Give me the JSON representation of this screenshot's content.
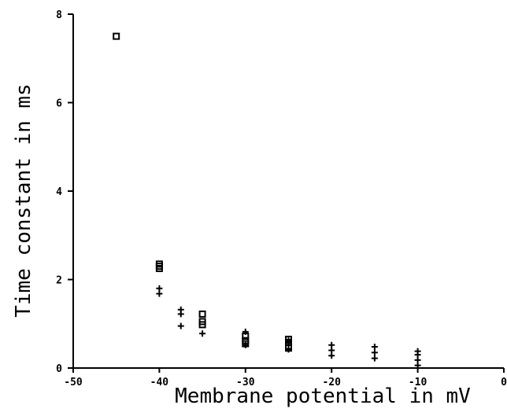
{
  "chart_data": {
    "type": "scatter",
    "title": "",
    "xlabel": "Membrane potential in mV",
    "ylabel": "Time constant in ms",
    "xlim": [
      -50,
      0
    ],
    "ylim": [
      0,
      8
    ],
    "grid": false,
    "x_ticks": [
      -50,
      -40,
      -30,
      -20,
      -10,
      0
    ],
    "x_tick_labels": [
      "-50",
      "-40",
      "-30",
      "-20",
      "-10",
      "0"
    ],
    "y_ticks": [
      0,
      2,
      4,
      6,
      8
    ],
    "y_tick_labels": [
      "0",
      "2",
      "4",
      "6",
      "8"
    ],
    "series": [
      {
        "marker": "square",
        "color": "#000000",
        "points": [
          [
            -45,
            7.5
          ],
          [
            -40,
            2.35
          ],
          [
            -40,
            2.3
          ],
          [
            -40,
            2.25
          ],
          [
            -35,
            1.22
          ],
          [
            -35,
            1.05
          ],
          [
            -35,
            0.98
          ],
          [
            -30,
            0.72
          ],
          [
            -30,
            0.62
          ],
          [
            -30,
            0.55
          ],
          [
            -25,
            0.65
          ],
          [
            -25,
            0.58
          ],
          [
            -25,
            0.5
          ],
          [
            -25,
            0.45
          ]
        ]
      },
      {
        "marker": "plus",
        "color": "#000000",
        "points": [
          [
            -40,
            1.8
          ],
          [
            -40,
            1.68
          ],
          [
            -37.5,
            1.32
          ],
          [
            -37.5,
            1.22
          ],
          [
            -37.5,
            0.95
          ],
          [
            -35,
            0.78
          ],
          [
            -30,
            0.82
          ],
          [
            -30,
            0.52
          ],
          [
            -25,
            0.62
          ],
          [
            -25,
            0.52
          ],
          [
            -25,
            0.42
          ],
          [
            -20,
            0.52
          ],
          [
            -20,
            0.4
          ],
          [
            -20,
            0.28
          ],
          [
            -15,
            0.48
          ],
          [
            -15,
            0.35
          ],
          [
            -15,
            0.22
          ],
          [
            -10,
            0.38
          ],
          [
            -10,
            0.3
          ],
          [
            -10,
            0.18
          ],
          [
            -10,
            0.06
          ]
        ]
      }
    ]
  }
}
